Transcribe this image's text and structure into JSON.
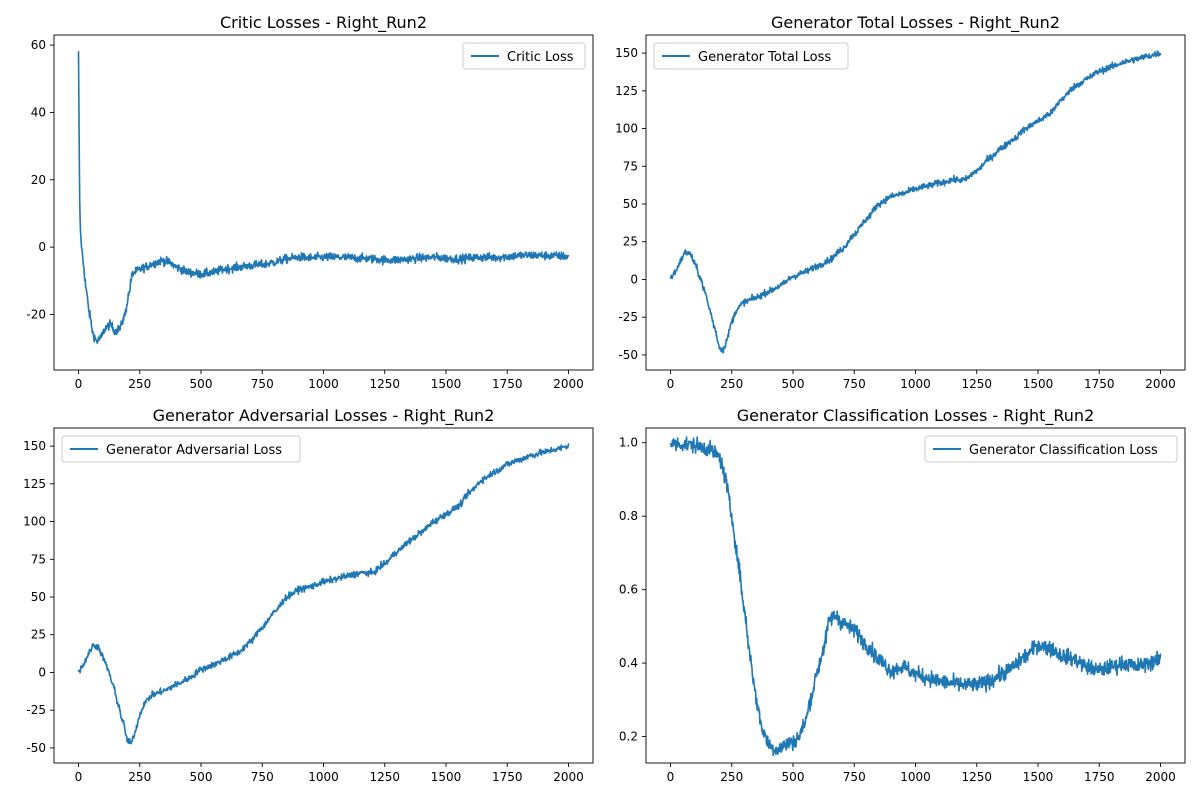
{
  "colors": {
    "series": "#1f77b4"
  },
  "chart_data": [
    {
      "type": "line",
      "title": "Critic Losses - Right_Run2",
      "xlim": [
        -100,
        2100
      ],
      "ylim": [
        -36.5,
        63
      ],
      "xticks": [
        0,
        250,
        500,
        750,
        1000,
        1250,
        1500,
        1750,
        2000
      ],
      "yticks": [
        -20,
        0,
        20,
        40,
        60
      ],
      "legend": "top-right",
      "series": [
        {
          "name": "Critic Loss",
          "noise": 1.2,
          "points": [
            [
              0,
              58
            ],
            [
              2,
              40
            ],
            [
              4,
              18
            ],
            [
              6,
              8
            ],
            [
              10,
              2
            ],
            [
              20,
              -5
            ],
            [
              30,
              -12
            ],
            [
              45,
              -20
            ],
            [
              60,
              -26
            ],
            [
              75,
              -28
            ],
            [
              90,
              -27
            ],
            [
              110,
              -24
            ],
            [
              130,
              -23
            ],
            [
              150,
              -25
            ],
            [
              170,
              -24
            ],
            [
              190,
              -20
            ],
            [
              205,
              -14
            ],
            [
              220,
              -8
            ],
            [
              240,
              -7
            ],
            [
              270,
              -6
            ],
            [
              300,
              -5
            ],
            [
              340,
              -4
            ],
            [
              370,
              -4.5
            ],
            [
              400,
              -6
            ],
            [
              450,
              -7.5
            ],
            [
              500,
              -8
            ],
            [
              550,
              -7.5
            ],
            [
              600,
              -6.5
            ],
            [
              650,
              -6
            ],
            [
              700,
              -5.5
            ],
            [
              750,
              -5.2
            ],
            [
              800,
              -4.5
            ],
            [
              850,
              -3.5
            ],
            [
              900,
              -3
            ],
            [
              950,
              -3.2
            ],
            [
              1000,
              -3
            ],
            [
              1050,
              -3
            ],
            [
              1100,
              -3.1
            ],
            [
              1150,
              -3.3
            ],
            [
              1200,
              -3.5
            ],
            [
              1250,
              -3.8
            ],
            [
              1300,
              -3.8
            ],
            [
              1350,
              -3.5
            ],
            [
              1400,
              -3.2
            ],
            [
              1450,
              -3
            ],
            [
              1500,
              -3.3
            ],
            [
              1550,
              -3.5
            ],
            [
              1600,
              -3.2
            ],
            [
              1650,
              -3
            ],
            [
              1700,
              -3.1
            ],
            [
              1750,
              -2.8
            ],
            [
              1800,
              -2.5
            ],
            [
              1850,
              -2.4
            ],
            [
              1900,
              -2.5
            ],
            [
              1950,
              -2.6
            ],
            [
              2000,
              -2.8
            ]
          ]
        }
      ]
    },
    {
      "type": "line",
      "title": "Generator Total Losses - Right_Run2",
      "xlim": [
        -100,
        2100
      ],
      "ylim": [
        -60,
        162
      ],
      "xticks": [
        0,
        250,
        500,
        750,
        1000,
        1250,
        1500,
        1750,
        2000
      ],
      "yticks": [
        -50,
        -25,
        0,
        25,
        50,
        75,
        100,
        125,
        150
      ],
      "legend": "top-left",
      "series": [
        {
          "name": "Generator Total Loss",
          "noise": 2,
          "points": [
            [
              0,
              1
            ],
            [
              20,
              5
            ],
            [
              40,
              12
            ],
            [
              60,
              18
            ],
            [
              80,
              17
            ],
            [
              100,
              10
            ],
            [
              120,
              2
            ],
            [
              140,
              -8
            ],
            [
              160,
              -20
            ],
            [
              180,
              -32
            ],
            [
              200,
              -45
            ],
            [
              215,
              -47
            ],
            [
              230,
              -40
            ],
            [
              250,
              -28
            ],
            [
              270,
              -20
            ],
            [
              300,
              -15
            ],
            [
              350,
              -12
            ],
            [
              400,
              -8
            ],
            [
              450,
              -4
            ],
            [
              500,
              2
            ],
            [
              550,
              5
            ],
            [
              600,
              9
            ],
            [
              650,
              13
            ],
            [
              700,
              20
            ],
            [
              750,
              30
            ],
            [
              800,
              40
            ],
            [
              850,
              50
            ],
            [
              900,
              55
            ],
            [
              950,
              57
            ],
            [
              1000,
              60
            ],
            [
              1050,
              62
            ],
            [
              1100,
              64
            ],
            [
              1150,
              66
            ],
            [
              1200,
              66
            ],
            [
              1250,
              72
            ],
            [
              1300,
              80
            ],
            [
              1350,
              87
            ],
            [
              1400,
              93
            ],
            [
              1450,
              100
            ],
            [
              1500,
              105
            ],
            [
              1550,
              110
            ],
            [
              1600,
              120
            ],
            [
              1650,
              128
            ],
            [
              1700,
              133
            ],
            [
              1750,
              138
            ],
            [
              1800,
              141
            ],
            [
              1850,
              144
            ],
            [
              1900,
              146
            ],
            [
              1950,
              148
            ],
            [
              2000,
              150
            ]
          ]
        }
      ]
    },
    {
      "type": "line",
      "title": "Generator Adversarial Losses - Right_Run2",
      "xlim": [
        -100,
        2100
      ],
      "ylim": [
        -60,
        162
      ],
      "xticks": [
        0,
        250,
        500,
        750,
        1000,
        1250,
        1500,
        1750,
        2000
      ],
      "yticks": [
        -50,
        -25,
        0,
        25,
        50,
        75,
        100,
        125,
        150
      ],
      "legend": "top-left",
      "series": [
        {
          "name": "Generator Adversarial Loss",
          "noise": 2,
          "points": [
            [
              0,
              1
            ],
            [
              20,
              5
            ],
            [
              40,
              12
            ],
            [
              60,
              18
            ],
            [
              80,
              17
            ],
            [
              100,
              10
            ],
            [
              120,
              2
            ],
            [
              140,
              -8
            ],
            [
              160,
              -20
            ],
            [
              180,
              -32
            ],
            [
              200,
              -45
            ],
            [
              215,
              -47
            ],
            [
              230,
              -40
            ],
            [
              250,
              -28
            ],
            [
              270,
              -20
            ],
            [
              300,
              -15
            ],
            [
              350,
              -12
            ],
            [
              400,
              -8
            ],
            [
              450,
              -4
            ],
            [
              500,
              2
            ],
            [
              550,
              5
            ],
            [
              600,
              9
            ],
            [
              650,
              13
            ],
            [
              700,
              20
            ],
            [
              750,
              30
            ],
            [
              800,
              40
            ],
            [
              850,
              50
            ],
            [
              900,
              55
            ],
            [
              950,
              57
            ],
            [
              1000,
              60
            ],
            [
              1050,
              62
            ],
            [
              1100,
              64
            ],
            [
              1150,
              66
            ],
            [
              1200,
              66
            ],
            [
              1250,
              72
            ],
            [
              1300,
              80
            ],
            [
              1350,
              87
            ],
            [
              1400,
              93
            ],
            [
              1450,
              100
            ],
            [
              1500,
              105
            ],
            [
              1550,
              110
            ],
            [
              1600,
              120
            ],
            [
              1650,
              128
            ],
            [
              1700,
              133
            ],
            [
              1750,
              138
            ],
            [
              1800,
              141
            ],
            [
              1850,
              144
            ],
            [
              1900,
              146
            ],
            [
              1950,
              148
            ],
            [
              2000,
              150
            ]
          ]
        }
      ]
    },
    {
      "type": "line",
      "title": "Generator Classification Losses - Right_Run2",
      "xlim": [
        -100,
        2100
      ],
      "ylim": [
        0.128,
        1.04
      ],
      "xticks": [
        0,
        250,
        500,
        750,
        1000,
        1250,
        1500,
        1750,
        2000
      ],
      "yticks": [
        0.2,
        0.4,
        0.6,
        0.8,
        1.0
      ],
      "legend": "top-right",
      "series": [
        {
          "name": "Generator Classification Loss",
          "noise": 0.02,
          "points": [
            [
              0,
              0.997
            ],
            [
              50,
              0.996
            ],
            [
              100,
              0.993
            ],
            [
              150,
              0.985
            ],
            [
              175,
              0.975
            ],
            [
              200,
              0.96
            ],
            [
              225,
              0.9
            ],
            [
              250,
              0.8
            ],
            [
              275,
              0.68
            ],
            [
              300,
              0.55
            ],
            [
              325,
              0.42
            ],
            [
              350,
              0.3
            ],
            [
              375,
              0.22
            ],
            [
              400,
              0.18
            ],
            [
              425,
              0.165
            ],
            [
              450,
              0.17
            ],
            [
              475,
              0.18
            ],
            [
              500,
              0.185
            ],
            [
              525,
              0.2
            ],
            [
              550,
              0.24
            ],
            [
              575,
              0.31
            ],
            [
              600,
              0.38
            ],
            [
              625,
              0.44
            ],
            [
              650,
              0.52
            ],
            [
              675,
              0.53
            ],
            [
              700,
              0.51
            ],
            [
              750,
              0.49
            ],
            [
              800,
              0.45
            ],
            [
              850,
              0.41
            ],
            [
              900,
              0.38
            ],
            [
              950,
              0.39
            ],
            [
              1000,
              0.37
            ],
            [
              1050,
              0.36
            ],
            [
              1100,
              0.35
            ],
            [
              1150,
              0.345
            ],
            [
              1200,
              0.34
            ],
            [
              1250,
              0.34
            ],
            [
              1300,
              0.35
            ],
            [
              1350,
              0.37
            ],
            [
              1400,
              0.39
            ],
            [
              1450,
              0.42
            ],
            [
              1500,
              0.45
            ],
            [
              1550,
              0.44
            ],
            [
              1600,
              0.42
            ],
            [
              1650,
              0.41
            ],
            [
              1700,
              0.39
            ],
            [
              1750,
              0.38
            ],
            [
              1800,
              0.39
            ],
            [
              1850,
              0.4
            ],
            [
              1900,
              0.39
            ],
            [
              1950,
              0.4
            ],
            [
              2000,
              0.41
            ]
          ]
        }
      ]
    }
  ]
}
